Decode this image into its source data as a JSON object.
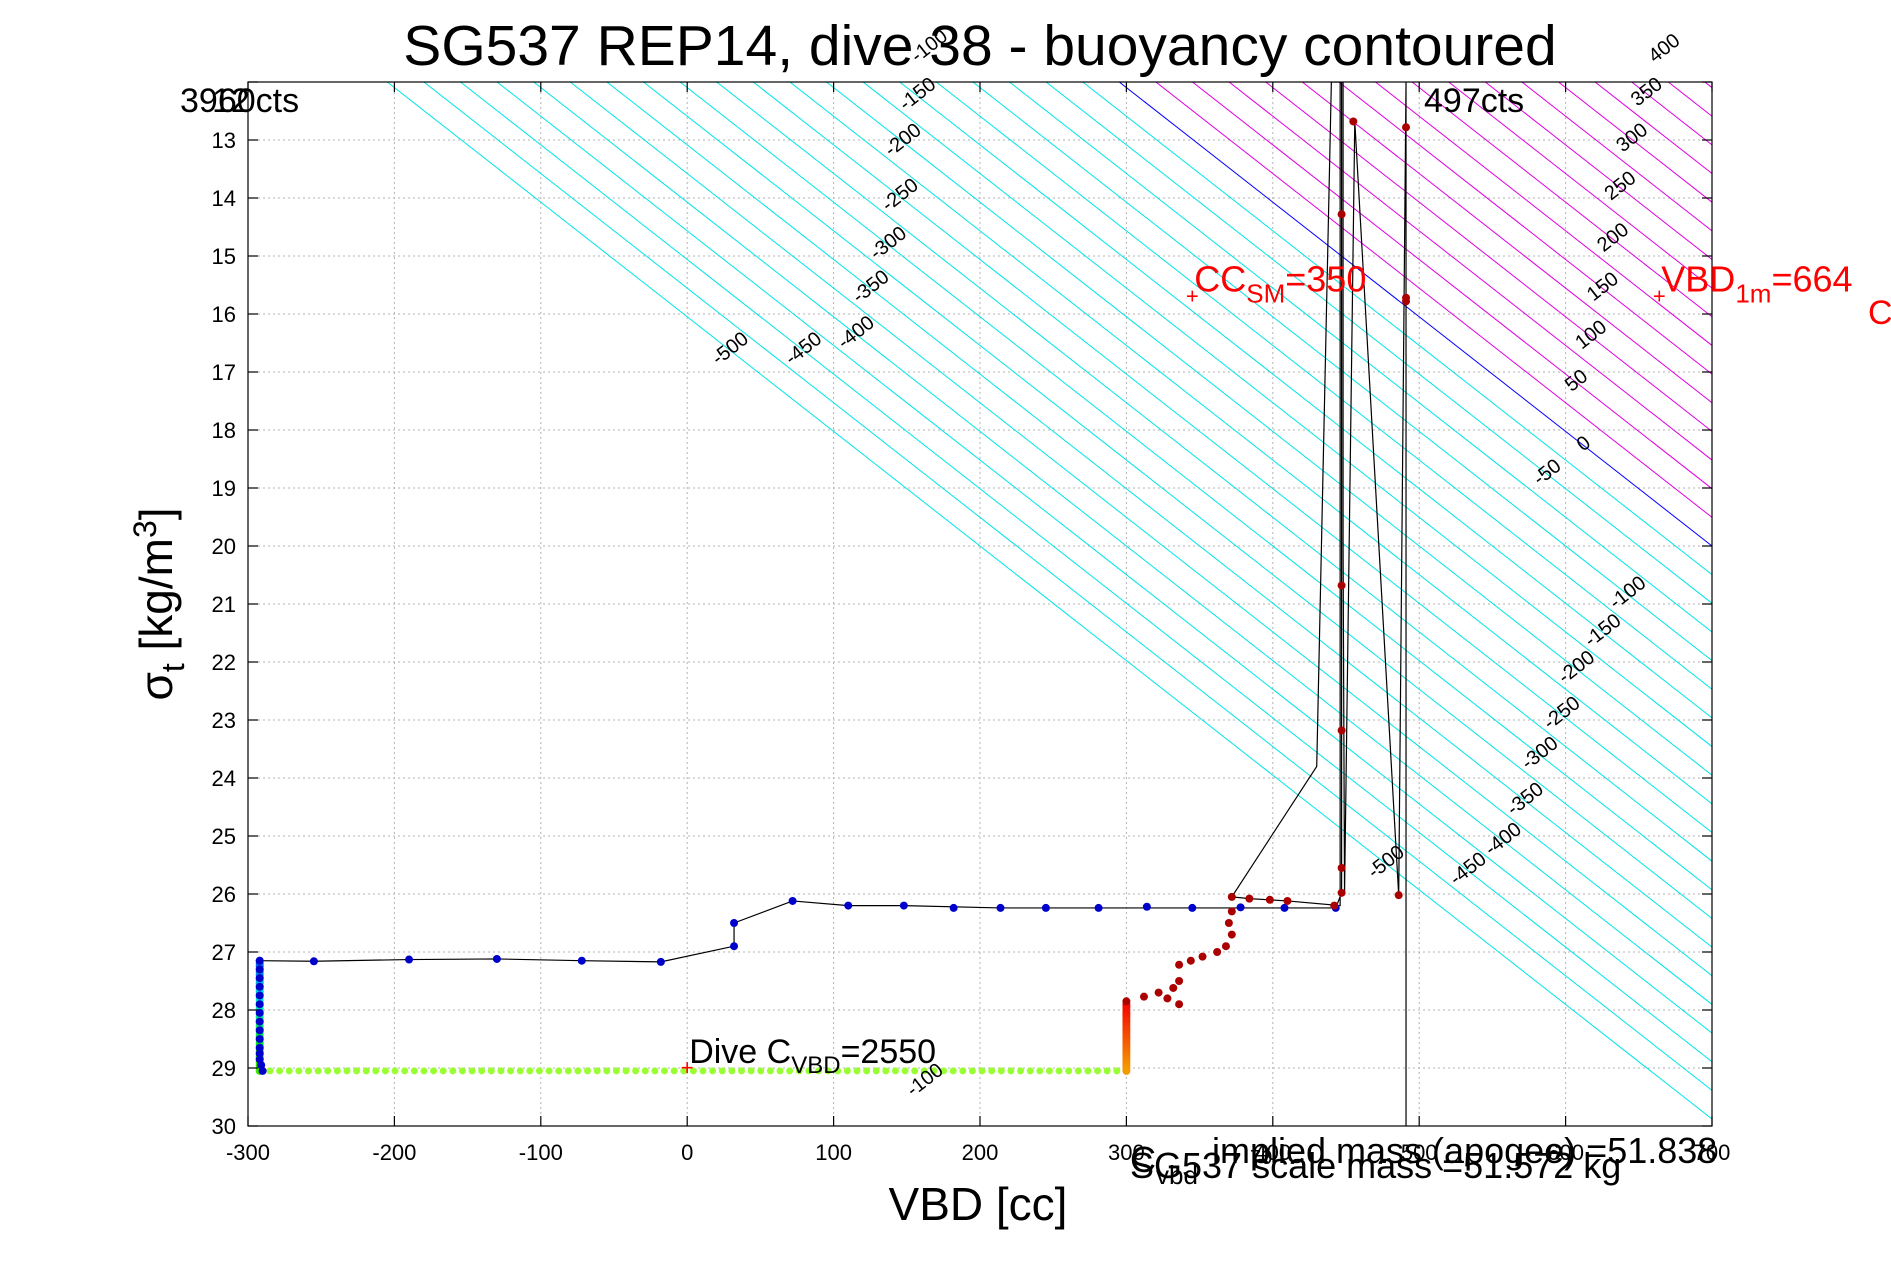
{
  "chart_data": {
    "type": "scatter",
    "title": "SG537 REP14, dive 38 - buoyancy contoured",
    "xlabel": "VBD [cc]",
    "ylabel": {
      "main": "σ",
      "sub": "t",
      "rest": " [kg/m",
      "sup": "3",
      "close": "]"
    },
    "xlim": [
      -300,
      700
    ],
    "ylim": [
      12,
      30
    ],
    "y_reversed": true,
    "grid": true,
    "x_ticks": [
      -300,
      -200,
      -100,
      0,
      100,
      200,
      300,
      400,
      500,
      600,
      700
    ],
    "x_tick_labels": [
      "-300",
      "-200",
      "-100",
      "0",
      "100",
      "200",
      "300",
      "400",
      "500",
      "600",
      "700"
    ],
    "y_ticks": [
      12,
      13,
      14,
      15,
      16,
      17,
      18,
      19,
      20,
      21,
      22,
      23,
      24,
      25,
      26,
      27,
      28,
      29,
      30
    ],
    "y_tick_labels": [
      "12",
      "13",
      "14",
      "15",
      "16",
      "17",
      "18",
      "19",
      "20",
      "21",
      "22",
      "23",
      "24",
      "25",
      "26",
      "27",
      "28",
      "29",
      "30"
    ],
    "contours": {
      "slope_sigma_per_cc": 0.01976,
      "zero_at": {
        "x": 700,
        "y": 20.0
      },
      "zero_color": "#0000ff",
      "negative_color": "#00e5e5",
      "positive_color": "#e000e0",
      "levels": [
        -500,
        -475,
        -450,
        -425,
        -400,
        -375,
        -350,
        -325,
        -300,
        -275,
        -250,
        -225,
        -200,
        -175,
        -150,
        -125,
        -100,
        -75,
        -50,
        -25,
        0,
        25,
        50,
        75,
        100,
        125,
        150,
        175,
        200,
        225,
        250,
        275,
        300,
        325,
        350,
        375,
        400,
        425,
        450,
        475,
        500
      ],
      "labels_upper_right": [
        "-500",
        "-450",
        "-400",
        "-350",
        "-300",
        "-250",
        "-200",
        "-150",
        "-100",
        "-50",
        "0",
        "50",
        "100",
        "150",
        "200",
        "250",
        "300",
        "350",
        "400"
      ],
      "labels_lower_left": [
        "-500",
        "-450",
        "-400",
        "-350",
        "-300",
        "-250",
        "-200",
        "-150",
        "-100"
      ]
    },
    "series": [
      {
        "color": "#0000cc",
        "points": [
          [
            -290,
            29.05
          ],
          [
            -291,
            28.95
          ],
          [
            -292,
            28.85
          ],
          [
            -292,
            28.75
          ],
          [
            -292,
            28.65
          ],
          [
            -292,
            28.5
          ],
          [
            -292,
            28.35
          ],
          [
            -292,
            28.2
          ],
          [
            -292,
            28.05
          ],
          [
            -292,
            27.9
          ],
          [
            -292,
            27.75
          ],
          [
            -292,
            27.6
          ],
          [
            -292,
            27.45
          ],
          [
            -292,
            27.3
          ],
          [
            -292,
            27.15
          ],
          [
            -255,
            27.16
          ],
          [
            -190,
            27.13
          ],
          [
            -130,
            27.12
          ],
          [
            -72,
            27.15
          ],
          [
            -18,
            27.17
          ],
          [
            32,
            26.9
          ],
          [
            32,
            26.5
          ],
          [
            72,
            26.12
          ],
          [
            110,
            26.2
          ],
          [
            148,
            26.2
          ],
          [
            182,
            26.24
          ],
          [
            214,
            26.24
          ],
          [
            245,
            26.24
          ],
          [
            281,
            26.24
          ],
          [
            314,
            26.22
          ],
          [
            345,
            26.24
          ],
          [
            378,
            26.23
          ],
          [
            408,
            26.24
          ],
          [
            443,
            26.24
          ]
        ]
      },
      {
        "color": "#aa0000",
        "points": [
          [
            372,
            26.05
          ],
          [
            384,
            26.08
          ],
          [
            398,
            26.1
          ],
          [
            410,
            26.12
          ],
          [
            372,
            26.3
          ],
          [
            370,
            26.5
          ],
          [
            372,
            26.7
          ],
          [
            368,
            26.9
          ],
          [
            362,
            27.0
          ],
          [
            352,
            27.08
          ],
          [
            344,
            27.15
          ],
          [
            336,
            27.22
          ],
          [
            336,
            27.5
          ],
          [
            332,
            27.62
          ],
          [
            322,
            27.7
          ],
          [
            312,
            27.77
          ],
          [
            300,
            27.85
          ],
          [
            336,
            27.9
          ],
          [
            328,
            27.8
          ],
          [
            442,
            26.2
          ],
          [
            447,
            25.98
          ],
          [
            447,
            25.55
          ],
          [
            447,
            23.18
          ],
          [
            447,
            20.68
          ],
          [
            447,
            14.28
          ],
          [
            455,
            12.68
          ],
          [
            486,
            26.02
          ],
          [
            491,
            15.72
          ],
          [
            491,
            15.78
          ],
          [
            491,
            12.78
          ]
        ]
      }
    ],
    "points_green": {
      "color": "#99ff33",
      "y": 29.05,
      "x_from": -285,
      "x_to": 300,
      "count": 90
    },
    "polyline_black": [
      [
        -292,
        27.15
      ],
      [
        -255,
        27.16
      ],
      [
        -190,
        27.13
      ],
      [
        -130,
        27.12
      ],
      [
        -72,
        27.15
      ],
      [
        -18,
        27.17
      ],
      [
        32,
        26.9
      ],
      [
        32,
        26.5
      ],
      [
        72,
        26.12
      ],
      [
        110,
        26.2
      ],
      [
        148,
        26.2
      ],
      [
        214,
        26.24
      ],
      [
        281,
        26.24
      ],
      [
        345,
        26.24
      ],
      [
        408,
        26.24
      ],
      [
        443,
        26.24
      ],
      [
        447,
        25.98
      ],
      [
        447,
        12
      ],
      [
        446,
        12
      ],
      [
        446,
        26.2
      ],
      [
        410,
        26.12
      ],
      [
        384,
        26.08
      ],
      [
        372,
        26.05
      ],
      [
        430,
        23.8
      ],
      [
        440,
        12
      ],
      [
        448,
        12
      ],
      [
        448,
        20.0
      ],
      [
        449,
        26.0
      ],
      [
        456,
        12.68
      ],
      [
        486,
        26.02
      ],
      [
        491,
        12
      ],
      [
        491,
        30
      ]
    ],
    "annotations": {
      "top_left_cts": "3960cts",
      "top_left_overlap": "12",
      "top_right_cts": "497cts",
      "cc_sm": {
        "x": 345,
        "y": 15.75,
        "main": "CC",
        "sub": "SM",
        "rest": "=350"
      },
      "vbd_1m": {
        "x": 664,
        "y": 15.75,
        "main": "VBD",
        "sub": "1m",
        "rest": "=664"
      },
      "vbd_1m_trailing": "C",
      "dive_c_vbd": {
        "x": 0,
        "y": 29.05,
        "main": "Dive C",
        "sub": "VBD",
        "rest": "=2550"
      },
      "dive_overlap_label": "-100",
      "bottom_overlap_1": "C",
      "bottom_overlap_1_sub": "vbd",
      "bottom_overlap_2": "SG537 scale mass =51.572 kg",
      "bottom_overlap_3": "implied mass (apogee) =51.838",
      "bottom_overlap_4": "70"
    },
    "colors": {
      "annotation_red": "#ff0000",
      "grid": "#b3b3b3",
      "axis": "#000000"
    }
  }
}
